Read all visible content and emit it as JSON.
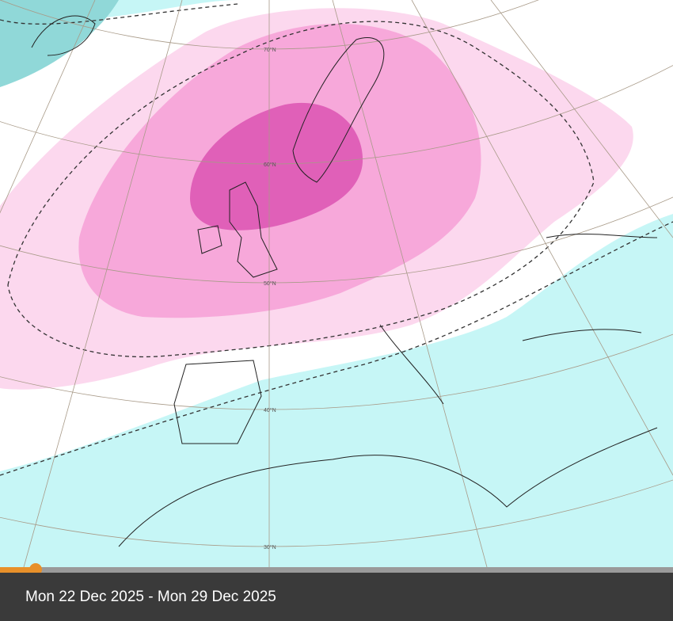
{
  "map": {
    "latitude_labels": [
      "70°N",
      "60°N",
      "50°N",
      "40°N",
      "30°N"
    ],
    "colors": {
      "strong_positive": "#e060b8",
      "positive": "#f7a8da",
      "weak_positive": "#fcd8ee",
      "neutral": "#ffffff",
      "weak_negative": "#c6f6f6",
      "negative": "#90d8d8"
    }
  },
  "timeline": {
    "progress_percent": 5.3,
    "date_range": "Mon 22 Dec 2025 - Mon 29 Dec 2025"
  }
}
